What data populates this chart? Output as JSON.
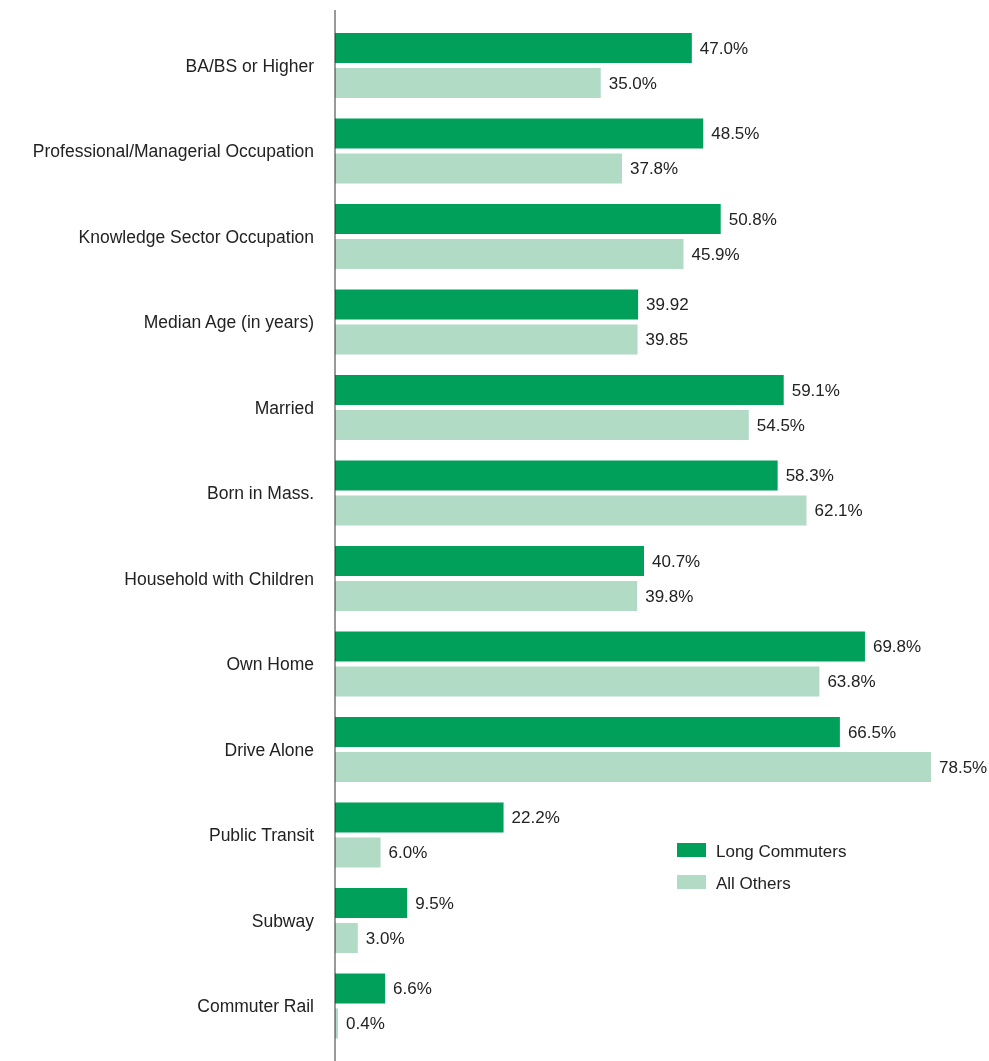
{
  "chart_data": {
    "type": "bar",
    "orientation": "horizontal",
    "categories": [
      "BA/BS or Higher",
      "Professional/Managerial Occupation",
      "Knowledge Sector Occupation",
      "Median Age (in years)",
      "Married",
      "Born in Mass.",
      "Household with Children",
      "Own Home",
      "Drive Alone",
      "Public Transit",
      "Subway",
      "Commuter Rail"
    ],
    "series": [
      {
        "name": "Long Commuters",
        "color": "#00a05a",
        "values": [
          47.0,
          48.5,
          50.8,
          39.92,
          59.1,
          58.3,
          40.7,
          69.8,
          66.5,
          22.2,
          9.5,
          6.6
        ],
        "value_labels": [
          "47.0%",
          "48.5%",
          "50.8%",
          "39.92",
          "59.1%",
          "58.3%",
          "40.7%",
          "69.8%",
          "66.5%",
          "22.2%",
          "9.5%",
          "6.6%"
        ]
      },
      {
        "name": "All Others",
        "color": "#b2dbc6",
        "values": [
          35.0,
          37.8,
          45.9,
          39.85,
          54.5,
          62.1,
          39.8,
          63.8,
          78.5,
          6.0,
          3.0,
          0.4
        ],
        "value_labels": [
          "35.0%",
          "37.8%",
          "45.9%",
          "39.85",
          "54.5%",
          "62.1%",
          "39.8%",
          "63.8%",
          "78.5%",
          "6.0%",
          "3.0%",
          "0.4%"
        ]
      }
    ],
    "legend": "bottom right"
  }
}
